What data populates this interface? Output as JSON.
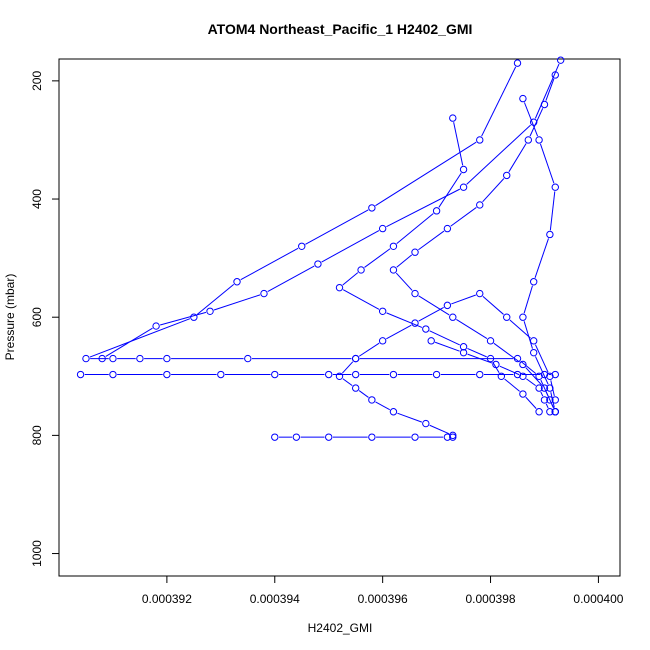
{
  "chart_data": {
    "type": "line",
    "title": "ATOM4 Northeast_Pacific_1 H2402_GMI",
    "xlabel": "H2402_GMI",
    "ylabel": "Pressure (mbar)",
    "x_ticks": [
      0.000392,
      0.000394,
      0.000396,
      0.000398,
      0.0004
    ],
    "x_tick_labels": [
      "0.000392",
      "0.000394",
      "0.000396",
      "0.000398",
      "0.000400"
    ],
    "y_ticks": [
      200,
      400,
      600,
      800,
      1000
    ],
    "y_tick_labels": [
      "200",
      "400",
      "600",
      "800",
      "1000"
    ],
    "xlim": [
      0.00039,
      0.0004004
    ],
    "ylim": [
      1038,
      163
    ],
    "y_reversed": true,
    "grid": false,
    "series_color": "#0000ff",
    "marker": "open-circle",
    "series": [
      {
        "x": [
          0.0003985,
          0.0003978,
          0.0003958,
          0.0003945,
          0.0003933,
          0.0003925,
          0.0003905,
          0.000391,
          0.0003915,
          0.000392,
          0.0003935,
          0.0003955,
          0.0003985,
          0.0003989,
          0.0003991,
          0.0003992
        ],
        "y": [
          170,
          300,
          415,
          480,
          540,
          600,
          670,
          670,
          670,
          670,
          670,
          670,
          670,
          700,
          740,
          760
        ]
      },
      {
        "x": [
          0.0003993,
          0.0003988,
          0.0003975,
          0.000396,
          0.0003948,
          0.0003938,
          0.0003928,
          0.0003918,
          0.0003908
        ],
        "y": [
          165,
          270,
          380,
          450,
          510,
          560,
          590,
          615,
          670
        ]
      },
      {
        "x": [
          0.0003904,
          0.000391,
          0.000392,
          0.000393,
          0.000394,
          0.000395,
          0.0003955,
          0.0003962,
          0.000397,
          0.0003978,
          0.0003985,
          0.000399,
          0.0003992
        ],
        "y": [
          697,
          697,
          697,
          697,
          697,
          697,
          697,
          697,
          697,
          697,
          697,
          697,
          697
        ]
      },
      {
        "x": [
          0.000394,
          0.0003944,
          0.000395,
          0.0003958,
          0.0003966,
          0.0003972,
          0.0003973
        ],
        "y": [
          803,
          803,
          803,
          803,
          803,
          803,
          803
        ]
      },
      {
        "x": [
          0.0003973,
          0.0003968,
          0.0003962,
          0.0003958,
          0.0003955,
          0.0003952,
          0.0003955,
          0.000396,
          0.0003966,
          0.0003972,
          0.0003978,
          0.0003983,
          0.0003988,
          0.0003991,
          0.0003992
        ],
        "y": [
          800,
          780,
          760,
          740,
          720,
          700,
          670,
          640,
          610,
          580,
          560,
          600,
          640,
          700,
          740
        ]
      },
      {
        "x": [
          0.0003973,
          0.0003975,
          0.000397,
          0.0003962,
          0.0003956,
          0.0003952,
          0.000396,
          0.0003968,
          0.0003975,
          0.000398,
          0.0003982,
          0.0003986,
          0.0003989
        ],
        "y": [
          263,
          350,
          420,
          480,
          520,
          550,
          590,
          620,
          650,
          670,
          700,
          730,
          760
        ]
      },
      {
        "x": [
          0.0003992,
          0.000399,
          0.0003987,
          0.0003983,
          0.0003978,
          0.0003972,
          0.0003966,
          0.0003962,
          0.0003966,
          0.0003973,
          0.000398,
          0.0003986,
          0.000399,
          0.0003992
        ],
        "y": [
          190,
          240,
          300,
          360,
          410,
          450,
          490,
          520,
          560,
          600,
          640,
          680,
          720,
          760
        ]
      },
      {
        "x": [
          0.0003986,
          0.0003989,
          0.0003992,
          0.0003991,
          0.0003988,
          0.0003986,
          0.0003988,
          0.0003991,
          0.0003992
        ],
        "y": [
          230,
          300,
          380,
          460,
          540,
          600,
          660,
          720,
          760
        ]
      },
      {
        "x": [
          0.0003969,
          0.0003975,
          0.0003981,
          0.0003986,
          0.0003989,
          0.000399,
          0.0003991
        ],
        "y": [
          640,
          660,
          680,
          700,
          720,
          740,
          760
        ]
      }
    ]
  }
}
